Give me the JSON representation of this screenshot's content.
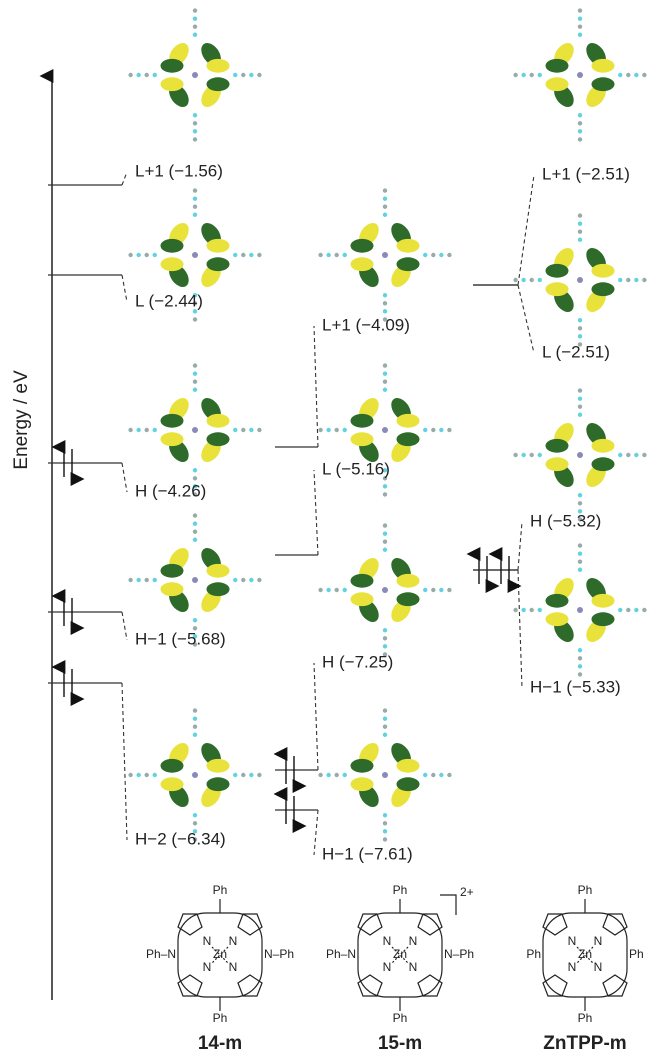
{
  "axis_label": "Energy / eV",
  "columns": [
    {
      "name": "14-m",
      "levels": [
        {
          "label": "L+1 (−1.56)",
          "occupied": false
        },
        {
          "label": "L (−2.44)",
          "occupied": false
        },
        {
          "label": "H (−4.26)",
          "occupied": true
        },
        {
          "label": "H−1 (−5.68)",
          "occupied": true
        },
        {
          "label": "H−2 (−6.34)",
          "occupied": true
        }
      ]
    },
    {
      "name": "15-m",
      "charge": "2+",
      "levels": [
        {
          "label": "L+1 (−4.09)",
          "occupied": false
        },
        {
          "label": "L (−5.16)",
          "occupied": false
        },
        {
          "label": "H (−7.25)",
          "occupied": true
        },
        {
          "label": "H−1 (−7.61)",
          "occupied": true
        }
      ]
    },
    {
      "name": "ZnTPP-m",
      "levels": [
        {
          "label": "L+1 (−2.51)",
          "occupied": false
        },
        {
          "label": "L (−2.51)",
          "occupied": false
        },
        {
          "label": "H (−5.32)",
          "occupied": true
        },
        {
          "label": "H−1 (−5.33)",
          "occupied": true
        }
      ]
    }
  ],
  "structures": [
    {
      "top": "Ph",
      "bottom": "Ph",
      "left": "Ph–N",
      "right": "N–Ph",
      "metal": "Zn",
      "nitrogen": "N"
    },
    {
      "top": "Ph",
      "bottom": "Ph",
      "left": "Ph–N",
      "right": "N–Ph",
      "metal": "Zn",
      "nitrogen": "N"
    },
    {
      "top": "Ph",
      "bottom": "Ph",
      "left": "Ph",
      "right": "Ph",
      "metal": "Zn",
      "nitrogen": "N"
    }
  ]
}
